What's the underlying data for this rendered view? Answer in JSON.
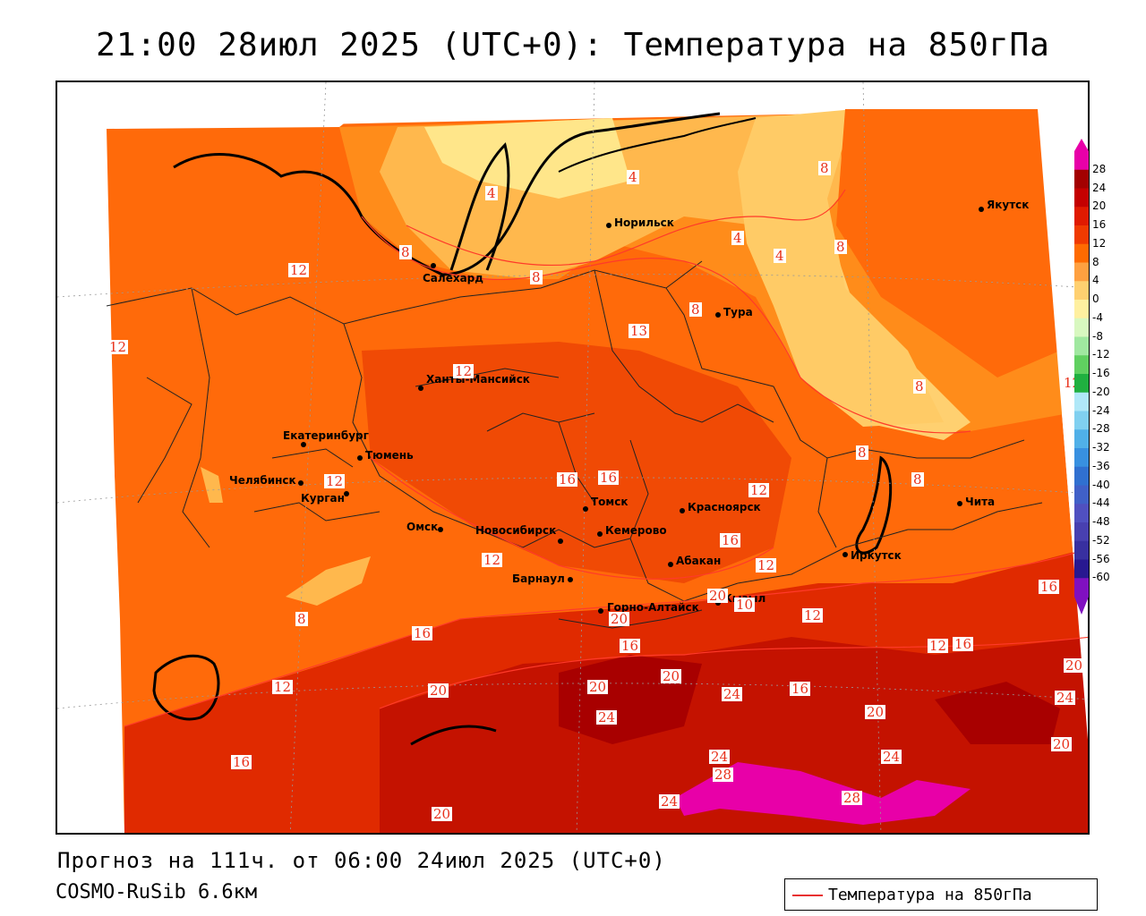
{
  "title": "21:00 28июл 2025 (UTC+0): Температура на 850гПа",
  "footer": {
    "forecast": "Прогноз на 111ч. от 06:00 24июл 2025 (UTC+0)",
    "model": "COSMO-RuSib 6.6км"
  },
  "legend": {
    "label": "Температура на 850гПа",
    "line_color": "#e83030"
  },
  "colorbar": {
    "labels": [
      "28",
      "24",
      "20",
      "16",
      "12",
      "8",
      "4",
      "0",
      "-4",
      "-8",
      "-12",
      "-16",
      "-20",
      "-24",
      "-28",
      "-32",
      "-36",
      "-40",
      "-44",
      "-48",
      "-52",
      "-56",
      "-60"
    ],
    "colors": [
      "#e800a8",
      "#a30000",
      "#c40000",
      "#e01a00",
      "#f03a00",
      "#ff6a00",
      "#ffa040",
      "#ffd070",
      "#fff0a0",
      "#d8f8c0",
      "#a0e8a0",
      "#60d060",
      "#20b040",
      "#b0e8f8",
      "#80d0f0",
      "#50b0e8",
      "#3890e0",
      "#3070d0",
      "#4060c8",
      "#5050c0",
      "#4840b0",
      "#3830a0",
      "#281890",
      "#8010c0"
    ]
  },
  "cities": [
    {
      "name": "Якутск"
    },
    {
      "name": "Норильск"
    },
    {
      "name": "Салехард"
    },
    {
      "name": "Тура"
    },
    {
      "name": "Ханты-Мансийск"
    },
    {
      "name": "Екатеринбург"
    },
    {
      "name": "Тюмень"
    },
    {
      "name": "Челябинск"
    },
    {
      "name": "Курган"
    },
    {
      "name": "Омск"
    },
    {
      "name": "Новосибирск"
    },
    {
      "name": "Томск"
    },
    {
      "name": "Кемерово"
    },
    {
      "name": "Красноярск"
    },
    {
      "name": "Абакан"
    },
    {
      "name": "Барнаул"
    },
    {
      "name": "Горно-Алтайск"
    },
    {
      "name": "Кызыл"
    },
    {
      "name": "Иркутск"
    },
    {
      "name": "Чита"
    }
  ],
  "contour_labels": [
    "4",
    "4",
    "4",
    "4",
    "8",
    "8",
    "8",
    "8",
    "8",
    "8",
    "8",
    "8",
    "8",
    "12",
    "12",
    "12",
    "12",
    "12",
    "12",
    "12",
    "12",
    "12",
    "12",
    "13",
    "16",
    "16",
    "16",
    "16",
    "16",
    "16",
    "16",
    "16",
    "16",
    "20",
    "20",
    "20",
    "20",
    "20",
    "20",
    "20",
    "20",
    "20",
    "24",
    "24",
    "24",
    "24",
    "24",
    "24",
    "28",
    "28",
    "12",
    "10"
  ]
}
